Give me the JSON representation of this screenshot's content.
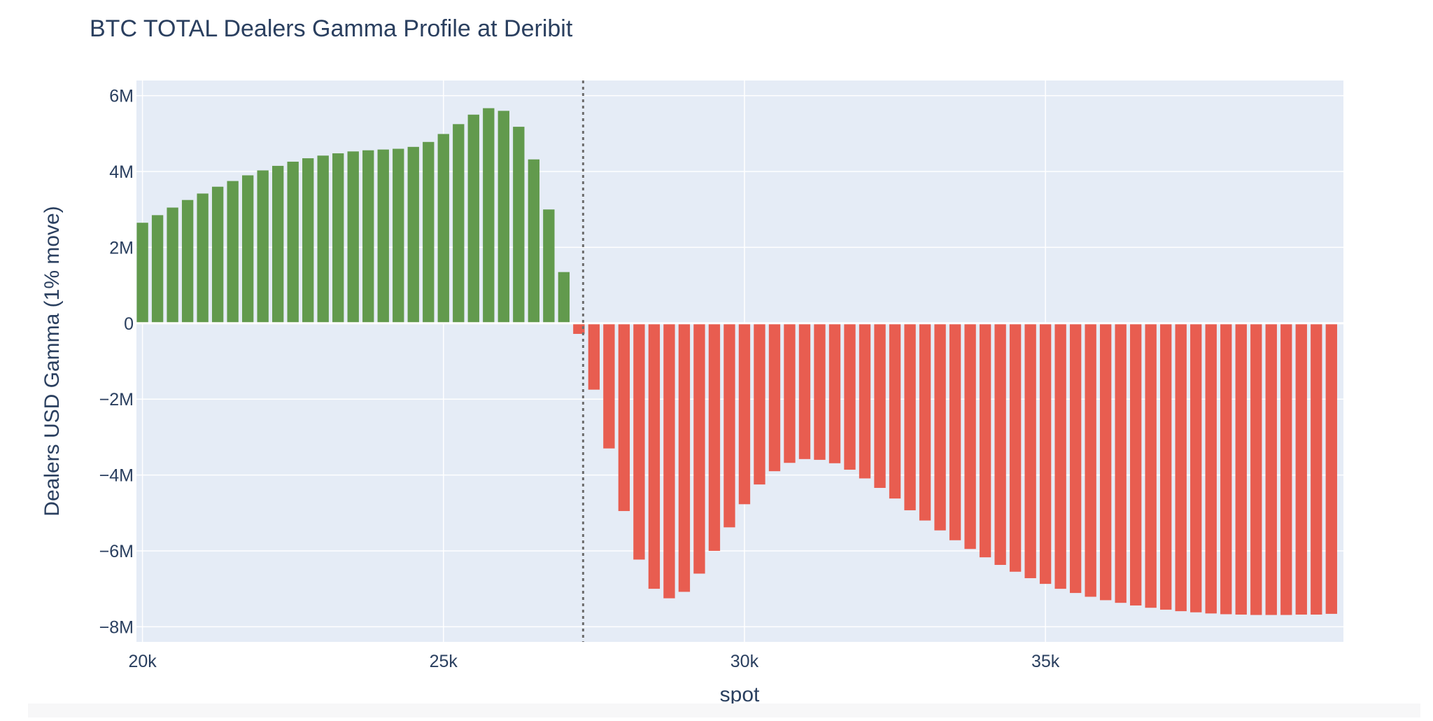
{
  "chart_data": {
    "type": "bar",
    "title": "BTC TOTAL Dealers Gamma Profile at Deribit",
    "xlabel": "spot",
    "ylabel": "Dealers USD Gamma (1% move)",
    "xlim": [
      19900,
      39950
    ],
    "ylim": [
      -8400000,
      6400000
    ],
    "x_ticks": [
      {
        "value": 20000,
        "label": "20k"
      },
      {
        "value": 25000,
        "label": "25k"
      },
      {
        "value": 30000,
        "label": "30k"
      },
      {
        "value": 35000,
        "label": "35k"
      }
    ],
    "y_ticks": [
      {
        "value": 6000000,
        "label": "6M"
      },
      {
        "value": 4000000,
        "label": "4M"
      },
      {
        "value": 2000000,
        "label": "2M"
      },
      {
        "value": 0,
        "label": "0"
      },
      {
        "value": -2000000,
        "label": "−2M"
      },
      {
        "value": -4000000,
        "label": "−4M"
      },
      {
        "value": -6000000,
        "label": "−6M"
      },
      {
        "value": -8000000,
        "label": "−8M"
      }
    ],
    "grid": true,
    "spot_line_x": 27320,
    "bar_width": 190,
    "colors": {
      "positive": "#629a4d",
      "negative": "#e85d50",
      "plot_bg": "#e5ecf6",
      "grid": "#ffffff",
      "spot_line": "#6e6e6e"
    },
    "x": [
      20000,
      20250,
      20500,
      20750,
      21000,
      21250,
      21500,
      21750,
      22000,
      22250,
      22500,
      22750,
      23000,
      23250,
      23500,
      23750,
      24000,
      24250,
      24500,
      24750,
      25000,
      25250,
      25500,
      25750,
      26000,
      26250,
      26500,
      26750,
      27000,
      27250,
      27500,
      27750,
      28000,
      28250,
      28500,
      28750,
      29000,
      29250,
      29500,
      29750,
      30000,
      30250,
      30500,
      30750,
      31000,
      31250,
      31500,
      31750,
      32000,
      32250,
      32500,
      32750,
      33000,
      33250,
      33500,
      33750,
      34000,
      34250,
      34500,
      34750,
      35000,
      35250,
      35500,
      35750,
      36000,
      36250,
      36500,
      36750,
      37000,
      37250,
      37500,
      37750,
      38000,
      38250,
      38500,
      38750,
      39000,
      39250,
      39500,
      39750
    ],
    "values": [
      2650000,
      2850000,
      3050000,
      3250000,
      3420000,
      3600000,
      3750000,
      3900000,
      4030000,
      4150000,
      4260000,
      4350000,
      4420000,
      4480000,
      4530000,
      4560000,
      4580000,
      4600000,
      4650000,
      4780000,
      4990000,
      5250000,
      5500000,
      5670000,
      5600000,
      5180000,
      4320000,
      3000000,
      1350000,
      -280000,
      -1750000,
      -3300000,
      -4950000,
      -6230000,
      -7000000,
      -7250000,
      -7080000,
      -6600000,
      -6000000,
      -5380000,
      -4770000,
      -4250000,
      -3900000,
      -3680000,
      -3580000,
      -3600000,
      -3690000,
      -3860000,
      -4090000,
      -4340000,
      -4620000,
      -4930000,
      -5200000,
      -5460000,
      -5720000,
      -5950000,
      -6170000,
      -6370000,
      -6550000,
      -6720000,
      -6870000,
      -7000000,
      -7110000,
      -7210000,
      -7300000,
      -7370000,
      -7440000,
      -7500000,
      -7550000,
      -7590000,
      -7620000,
      -7650000,
      -7670000,
      -7680000,
      -7690000,
      -7690000,
      -7690000,
      -7680000,
      -7680000,
      -7660000
    ]
  }
}
